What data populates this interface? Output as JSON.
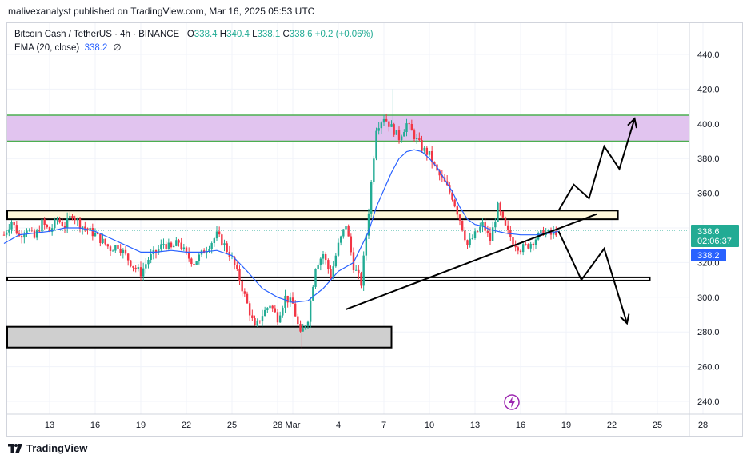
{
  "header": {
    "caption": "malivexanalyst published on TradingView.com, Mar 16, 2025 05:53 UTC"
  },
  "legend": {
    "symbol": "Bitcoin Cash / TetherUS · 4h · BINANCE",
    "o_label": "O",
    "o_val": "338.4",
    "h_label": "H",
    "h_val": "340.4",
    "l_label": "L",
    "l_val": "338.1",
    "c_label": "C",
    "c_val": "338.6",
    "change": "+0.2 (+0.06%)",
    "ema_label": "EMA (20, close)",
    "ema_val": "338.2",
    "ema_icon": "∅"
  },
  "price_tags": {
    "last_price": "338.6",
    "countdown": "02:06:37",
    "ema_price": "338.2"
  },
  "footer": {
    "brand": "TradingView"
  },
  "colors": {
    "up": "#22ab94",
    "down": "#f23645",
    "ema": "#2962ff",
    "resistance_fill": "#e1c4ef",
    "resistance_line": "#4caf50",
    "support_fill": "#cfcfcf",
    "mid_zone_fill": "#fff8dc"
  },
  "chart_data": {
    "type": "candlestick",
    "ylim": [
      230,
      450
    ],
    "y_ticks": [
      "440.0",
      "420.0",
      "400.0",
      "380.0",
      "360.0",
      "340.0",
      "320.0",
      "300.0",
      "280.0",
      "260.0",
      "240.0"
    ],
    "x_ticks": [
      "13",
      "16",
      "19",
      "22",
      "25",
      "28",
      "Mar",
      "4",
      "7",
      "10",
      "13",
      "16",
      "19",
      "22",
      "25",
      "28"
    ],
    "x_tick_days": [
      13,
      16,
      19,
      22,
      25,
      28,
      29,
      32,
      35,
      38,
      41,
      44,
      47,
      50,
      53,
      56
    ],
    "price_path": [
      [
        10,
        336
      ],
      [
        10.5,
        344
      ],
      [
        11,
        335
      ],
      [
        11.5,
        340
      ],
      [
        12,
        334
      ],
      [
        12.5,
        343
      ],
      [
        13,
        338
      ],
      [
        13.5,
        345
      ],
      [
        14,
        341
      ],
      [
        14.5,
        348
      ],
      [
        15,
        342
      ],
      [
        15.5,
        339
      ],
      [
        16,
        336
      ],
      [
        16.5,
        332
      ],
      [
        17,
        328
      ],
      [
        17.5,
        330
      ],
      [
        18,
        324
      ],
      [
        18.5,
        318
      ],
      [
        19,
        314
      ],
      [
        19.5,
        322
      ],
      [
        20,
        326
      ],
      [
        20.5,
        331
      ],
      [
        21,
        328
      ],
      [
        21.5,
        332
      ],
      [
        22,
        324
      ],
      [
        22.5,
        320
      ],
      [
        23,
        325
      ],
      [
        23.5,
        330
      ],
      [
        24,
        336
      ],
      [
        24.5,
        330
      ],
      [
        25,
        322
      ],
      [
        25.5,
        310
      ],
      [
        26,
        296
      ],
      [
        26.5,
        282
      ],
      [
        27,
        290
      ],
      [
        27.5,
        296
      ],
      [
        28,
        288
      ],
      [
        28.5,
        300
      ],
      [
        29,
        296
      ],
      [
        29.5,
        278
      ],
      [
        30,
        288
      ],
      [
        30.5,
        318
      ],
      [
        31,
        325
      ],
      [
        31.5,
        312
      ],
      [
        32,
        330
      ],
      [
        32.5,
        342
      ],
      [
        33,
        318
      ],
      [
        33.5,
        308
      ],
      [
        34,
        350
      ],
      [
        34.5,
        398
      ],
      [
        35,
        404
      ],
      [
        35.5,
        398
      ],
      [
        36,
        392
      ],
      [
        36.5,
        400
      ],
      [
        37,
        393
      ],
      [
        37.5,
        386
      ],
      [
        38,
        382
      ],
      [
        38.5,
        372
      ],
      [
        39,
        366
      ],
      [
        39.5,
        358
      ],
      [
        40,
        345
      ],
      [
        40.5,
        330
      ],
      [
        41,
        336
      ],
      [
        41.5,
        342
      ],
      [
        42,
        333
      ],
      [
        42.5,
        352
      ],
      [
        43,
        340
      ],
      [
        43.5,
        332
      ],
      [
        44,
        328
      ],
      [
        44.5,
        330
      ],
      [
        45,
        334
      ],
      [
        45.5,
        338
      ],
      [
        46,
        336
      ],
      [
        46.5,
        338.6
      ]
    ],
    "ema_path": [
      [
        10,
        331
      ],
      [
        11,
        336
      ],
      [
        12,
        337
      ],
      [
        13,
        338
      ],
      [
        14,
        340
      ],
      [
        15,
        340
      ],
      [
        16,
        338
      ],
      [
        17,
        334
      ],
      [
        18,
        330
      ],
      [
        19,
        326
      ],
      [
        20,
        326
      ],
      [
        21,
        327
      ],
      [
        22,
        326
      ],
      [
        23,
        326
      ],
      [
        24,
        327
      ],
      [
        25,
        324
      ],
      [
        26,
        315
      ],
      [
        27,
        305
      ],
      [
        28,
        300
      ],
      [
        29,
        297
      ],
      [
        30,
        298
      ],
      [
        31,
        305
      ],
      [
        32,
        315
      ],
      [
        33,
        320
      ],
      [
        34,
        338
      ],
      [
        34.5,
        352
      ],
      [
        35,
        362
      ],
      [
        35.5,
        372
      ],
      [
        36,
        380
      ],
      [
        36.5,
        384
      ],
      [
        37,
        385
      ],
      [
        37.5,
        384
      ],
      [
        38,
        380
      ],
      [
        38.5,
        375
      ],
      [
        39,
        368
      ],
      [
        39.5,
        361
      ],
      [
        40,
        352
      ],
      [
        40.5,
        345
      ],
      [
        41,
        342
      ],
      [
        41.5,
        341
      ],
      [
        42,
        339
      ],
      [
        43,
        337
      ],
      [
        44,
        336
      ],
      [
        45,
        336
      ],
      [
        46,
        337
      ],
      [
        46.5,
        338.2
      ]
    ],
    "zones": [
      {
        "name": "resistance",
        "top": 405,
        "bottom": 390
      },
      {
        "name": "mid",
        "top": 350,
        "bottom": 345
      },
      {
        "name": "neckline",
        "top": 311,
        "bottom": 310
      },
      {
        "name": "support",
        "top": 283,
        "bottom": 271
      }
    ],
    "trendline": [
      [
        32.5,
        293
      ],
      [
        49,
        348
      ]
    ],
    "bull_path": [
      [
        46.5,
        350
      ],
      [
        47.5,
        365
      ],
      [
        48.5,
        357
      ],
      [
        49.5,
        387
      ],
      [
        50.5,
        374
      ],
      [
        51.5,
        403
      ]
    ],
    "bear_path": [
      [
        46.5,
        338
      ],
      [
        48,
        310
      ],
      [
        49.5,
        328
      ],
      [
        51,
        285
      ]
    ],
    "current_price": 338.6,
    "ema_current": 338.2
  }
}
